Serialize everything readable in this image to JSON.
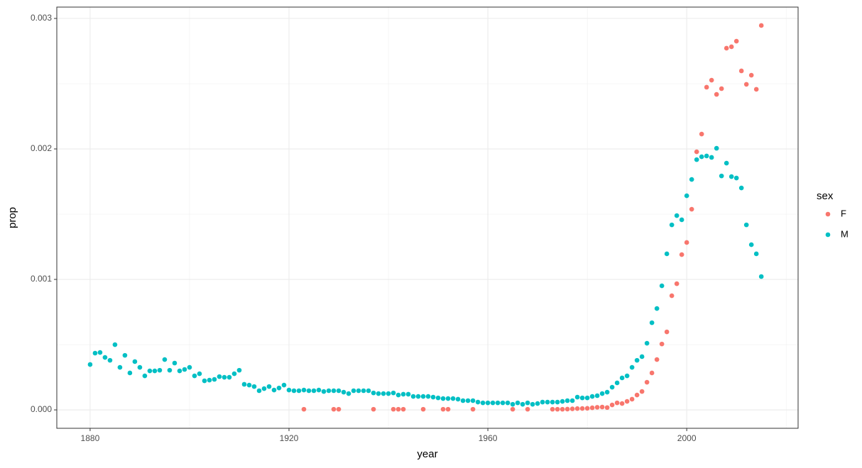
{
  "chart_data": {
    "type": "scatter",
    "x_label": "year",
    "y_label": "prop",
    "x": [
      1880,
      1881,
      1882,
      1883,
      1884,
      1885,
      1886,
      1887,
      1888,
      1889,
      1890,
      1891,
      1892,
      1893,
      1894,
      1895,
      1896,
      1897,
      1898,
      1899,
      1900,
      1901,
      1902,
      1903,
      1904,
      1905,
      1906,
      1907,
      1908,
      1909,
      1910,
      1911,
      1912,
      1913,
      1914,
      1915,
      1916,
      1917,
      1918,
      1919,
      1920,
      1921,
      1922,
      1923,
      1924,
      1925,
      1926,
      1927,
      1928,
      1929,
      1930,
      1931,
      1932,
      1933,
      1934,
      1935,
      1936,
      1937,
      1938,
      1939,
      1940,
      1941,
      1942,
      1943,
      1944,
      1945,
      1946,
      1947,
      1948,
      1949,
      1950,
      1951,
      1952,
      1953,
      1954,
      1955,
      1956,
      1957,
      1958,
      1959,
      1960,
      1961,
      1962,
      1963,
      1964,
      1965,
      1966,
      1967,
      1968,
      1969,
      1970,
      1971,
      1972,
      1973,
      1974,
      1975,
      1976,
      1977,
      1978,
      1979,
      1980,
      1981,
      1982,
      1983,
      1984,
      1985,
      1986,
      1987,
      1988,
      1989,
      1990,
      1991,
      1992,
      1993,
      1994,
      1995,
      1996,
      1997,
      1998,
      1999,
      2000,
      2001,
      2002,
      2003,
      2004,
      2005,
      2006,
      2007,
      2008,
      2009,
      2010,
      2011,
      2012,
      2013,
      2014,
      2015
    ],
    "legend_title": "sex",
    "series": [
      {
        "name": "F",
        "color": "#F8766D",
        "values": [
          null,
          null,
          null,
          null,
          null,
          null,
          null,
          null,
          null,
          null,
          null,
          null,
          null,
          null,
          null,
          null,
          null,
          null,
          null,
          null,
          null,
          null,
          null,
          null,
          null,
          null,
          null,
          null,
          null,
          null,
          null,
          null,
          null,
          null,
          null,
          null,
          null,
          null,
          null,
          null,
          null,
          null,
          null,
          5e-06,
          null,
          null,
          null,
          null,
          null,
          5e-06,
          5e-06,
          null,
          null,
          null,
          null,
          null,
          null,
          5e-06,
          null,
          null,
          null,
          5e-06,
          5e-06,
          5e-06,
          null,
          null,
          null,
          5e-06,
          null,
          null,
          null,
          5e-06,
          5e-06,
          null,
          null,
          null,
          null,
          5e-06,
          null,
          null,
          null,
          null,
          null,
          null,
          null,
          5e-06,
          null,
          null,
          5e-06,
          null,
          null,
          null,
          null,
          5e-06,
          5e-06,
          5e-06,
          6e-06,
          8e-06,
          1e-05,
          1.1e-05,
          1.2e-05,
          1.6e-05,
          2e-05,
          2.2e-05,
          1.8e-05,
          3.8e-05,
          5.4e-05,
          4.9e-05,
          6.5e-05,
          8.2e-05,
          0.000114,
          0.000141,
          0.000212,
          0.000283,
          0.000386,
          0.000505,
          0.000598,
          0.000875,
          0.000967,
          0.00119,
          0.001283,
          0.001538,
          0.001978,
          0.002114,
          0.002473,
          0.002527,
          0.002418,
          0.002462,
          0.002772,
          0.002783,
          0.002826,
          0.002598,
          0.002495,
          0.002565,
          0.002457,
          0.002946
        ]
      },
      {
        "name": "M",
        "color": "#00BFC4",
        "values": [
          0.000348,
          0.000435,
          0.00044,
          0.000402,
          0.00038,
          0.0005,
          0.000326,
          0.000418,
          0.000283,
          0.00037,
          0.000326,
          0.000261,
          0.000299,
          0.000299,
          0.000304,
          0.000386,
          0.000304,
          0.000359,
          0.000299,
          0.00031,
          0.000326,
          0.000261,
          0.000277,
          0.000223,
          0.000228,
          0.000234,
          0.000255,
          0.00025,
          0.00025,
          0.000277,
          0.000304,
          0.000196,
          0.00019,
          0.000179,
          0.000147,
          0.000163,
          0.000179,
          0.000152,
          0.000168,
          0.00019,
          0.000152,
          0.000147,
          0.000147,
          0.000152,
          0.000147,
          0.000147,
          0.000152,
          0.000141,
          0.000147,
          0.000147,
          0.000147,
          0.000136,
          0.000125,
          0.000147,
          0.000147,
          0.000147,
          0.000147,
          0.00013,
          0.000125,
          0.000125,
          0.000125,
          0.00013,
          0.000114,
          0.00012,
          0.00012,
          0.000103,
          0.000103,
          0.000103,
          0.000103,
          9.8e-05,
          9.2e-05,
          8.7e-05,
          8.7e-05,
          8.7e-05,
          8.2e-05,
          7.1e-05,
          7.1e-05,
          7.1e-05,
          6e-05,
          5.4e-05,
          5.4e-05,
          5.4e-05,
          5.4e-05,
          5.4e-05,
          5.4e-05,
          4.3e-05,
          5.4e-05,
          4.3e-05,
          5.4e-05,
          4.3e-05,
          4.9e-05,
          6e-05,
          6e-05,
          6e-05,
          6e-05,
          6.5e-05,
          7.1e-05,
          7.1e-05,
          9.8e-05,
          9.2e-05,
          9.2e-05,
          0.000103,
          0.000109,
          0.000125,
          0.000136,
          0.000174,
          0.000207,
          0.000245,
          0.000261,
          0.000326,
          0.00038,
          0.000408,
          0.000511,
          0.000668,
          0.000777,
          0.000951,
          0.001196,
          0.001418,
          0.001489,
          0.001457,
          0.001641,
          0.001766,
          0.001918,
          0.00194,
          0.001946,
          0.001935,
          0.002005,
          0.001793,
          0.001891,
          0.001788,
          0.001777,
          0.001701,
          0.001418,
          0.001266,
          0.001196,
          0.001022
        ]
      }
    ],
    "xlim": [
      1873.3,
      2022.4
    ],
    "ylim": [
      -0.000141,
      0.003087
    ],
    "xticks": [
      1880,
      1920,
      1960,
      2000
    ],
    "yticks": [
      {
        "value": 0,
        "label": "0.000"
      },
      {
        "value": 0.001,
        "label": "0.001"
      },
      {
        "value": 0.002,
        "label": "0.002"
      },
      {
        "value": 0.003,
        "label": "0.003"
      }
    ],
    "xminorticks": [
      1900,
      1940,
      1980,
      2020
    ],
    "yminorticks": [
      0.0005,
      0.0015,
      0.0025
    ],
    "grid": true,
    "legend": "right"
  }
}
